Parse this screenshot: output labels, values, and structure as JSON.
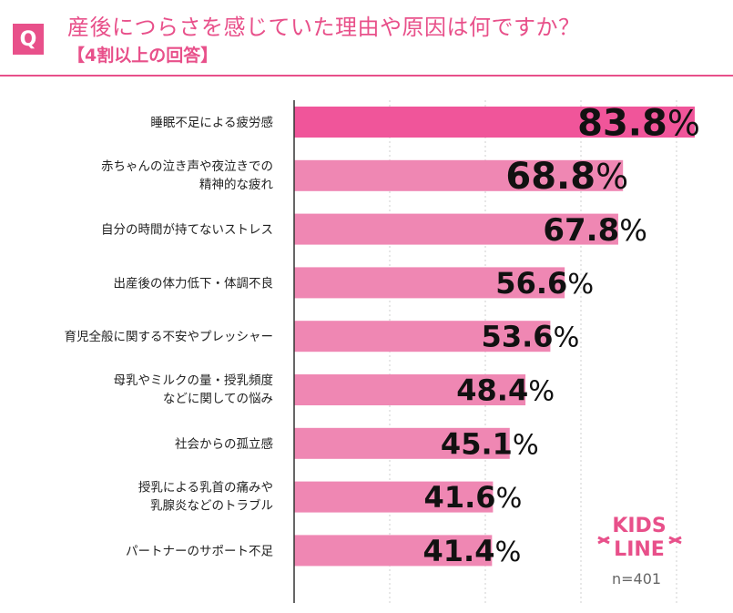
{
  "header": {
    "q_badge": "Q",
    "title": "産後につらさを感じていた理由や原因は何ですか？",
    "subtitle": "【4割以上の回答】"
  },
  "colors": {
    "accent": "#e8508a",
    "bar_top": "#f0559a",
    "bar": "#ef87b3",
    "grid": "#cfcfcf"
  },
  "chart_data": {
    "type": "bar",
    "orientation": "horizontal",
    "title": "産後につらさを感じていた理由や原因は何ですか？",
    "subtitle": "【4割以上の回答】",
    "categories": [
      [
        "睡眠不足による疲労感"
      ],
      [
        "赤ちゃんの泣き声や夜泣きでの",
        "精神的な疲れ"
      ],
      [
        "自分の時間が持てないストレス"
      ],
      [
        "出産後の体力低下・体調不良"
      ],
      [
        "育児全般に関する不安やプレッシャー"
      ],
      [
        "母乳やミルクの量・授乳頻度",
        "などに関しての悩み"
      ],
      [
        "社会からの孤立感"
      ],
      [
        "授乳による乳首の痛みや",
        "乳腺炎などのトラブル"
      ],
      [
        "パートナーのサポート不足"
      ]
    ],
    "values": [
      83.8,
      68.8,
      67.8,
      56.6,
      53.6,
      48.4,
      45.1,
      41.6,
      41.4
    ],
    "value_suffix": "%",
    "xlim": [
      0,
      100
    ],
    "xlabel": "",
    "ylabel": ""
  },
  "logo": {
    "line1": "KIDS",
    "line2": "LINE"
  },
  "sample_size": "n=401"
}
